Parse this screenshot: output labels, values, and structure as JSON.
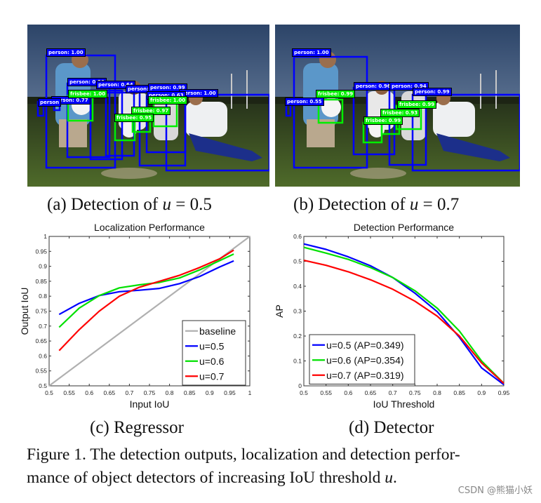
{
  "figure": {
    "panels": {
      "a": {
        "caption_prefix": "(a) Detection of ",
        "caption_var": "u",
        "caption_suffix": " = 0.5",
        "labels": [
          {
            "cls": "person",
            "text": "person: 1.00"
          },
          {
            "cls": "person",
            "text": "person: 0.56"
          },
          {
            "cls": "person",
            "text": "person: 0.64"
          },
          {
            "cls": "person",
            "text": "person: 0.70"
          },
          {
            "cls": "person",
            "text": "person: 0.82"
          },
          {
            "cls": "person",
            "text": "person: 0.99"
          },
          {
            "cls": "person",
            "text": "person: 0.63"
          },
          {
            "cls": "person",
            "text": "person: 1.00"
          },
          {
            "cls": "person",
            "text": "person: 0.77"
          },
          {
            "cls": "person",
            "text": "person"
          },
          {
            "cls": "frisbee",
            "text": "frisbee: 1.00"
          },
          {
            "cls": "frisbee",
            "text": "frisbee: 0.97"
          },
          {
            "cls": "frisbee",
            "text": "frisbee: 0.95"
          },
          {
            "cls": "frisbee",
            "text": "frisbee: 1.00"
          }
        ]
      },
      "b": {
        "caption_prefix": "(b) Detection of ",
        "caption_var": "u",
        "caption_suffix": " = 0.7",
        "labels": [
          {
            "cls": "person",
            "text": "person: 1.00"
          },
          {
            "cls": "person",
            "text": "person: 0.55"
          },
          {
            "cls": "person",
            "text": "person: 0.96"
          },
          {
            "cls": "person",
            "text": "person: 0.94"
          },
          {
            "cls": "person",
            "text": "person: 0.99"
          },
          {
            "cls": "frisbee",
            "text": "frisbee: 0.99"
          },
          {
            "cls": "frisbee",
            "text": "frisbee: 0.99"
          },
          {
            "cls": "frisbee",
            "text": "frisbee: 0.93"
          },
          {
            "cls": "frisbee",
            "text": "frisbee: 0.99"
          }
        ]
      },
      "c": {
        "caption": "(c) Regressor"
      },
      "d": {
        "caption": "(d) Detector"
      }
    },
    "caption_line1": "Figure 1. The detection outputs, localization and detection perfor-",
    "caption_line2_pre": "mance of object detectors of increasing IoU threshold ",
    "caption_line2_var": "u",
    "caption_line2_post": ".",
    "colors": {
      "person_box": "#0000ff",
      "frisbee_box": "#00ee00",
      "u05": "#0000ff",
      "u06": "#00e000",
      "u07": "#ff0000",
      "baseline": "#b0b0b0"
    }
  },
  "watermark": "CSDN @熊猫小妖",
  "chart_data": [
    {
      "type": "line",
      "title": "Localization Performance",
      "xlabel": "Input IoU",
      "ylabel": "Output IoU",
      "xlim": [
        0.5,
        1
      ],
      "ylim": [
        0.5,
        1
      ],
      "xticks": [
        "0.5",
        "0.55",
        "0.6",
        "0.65",
        "0.7",
        "0.75",
        "0.8",
        "0.85",
        "0.9",
        "0.95",
        "1"
      ],
      "yticks": [
        "0.5",
        "0.55",
        "0.6",
        "0.65",
        "0.7",
        "0.75",
        "0.8",
        "0.85",
        "0.9",
        "0.95",
        "1"
      ],
      "grid": false,
      "legend_position": "lower right",
      "x": [
        0.525,
        0.575,
        0.625,
        0.675,
        0.725,
        0.775,
        0.825,
        0.875,
        0.925,
        0.96
      ],
      "series": [
        {
          "name": "baseline",
          "x": [
            0.5,
            1.0
          ],
          "values": [
            0.5,
            1.0
          ],
          "color": "#b0b0b0"
        },
        {
          "name": "u=0.5",
          "values": [
            0.739,
            0.776,
            0.802,
            0.815,
            0.82,
            0.826,
            0.842,
            0.866,
            0.898,
            0.918
          ],
          "color": "#0000ff"
        },
        {
          "name": "u=0.6",
          "values": [
            0.696,
            0.76,
            0.802,
            0.828,
            0.838,
            0.846,
            0.861,
            0.888,
            0.919,
            0.941
          ],
          "color": "#00e000"
        },
        {
          "name": "u=0.7",
          "values": [
            0.618,
            0.688,
            0.75,
            0.8,
            0.83,
            0.85,
            0.87,
            0.896,
            0.925,
            0.954
          ],
          "color": "#ff0000"
        }
      ]
    },
    {
      "type": "line",
      "title": "Detection Performance",
      "xlabel": "IoU Threshold",
      "ylabel": "AP",
      "xlim": [
        0.5,
        0.95
      ],
      "ylim": [
        0,
        0.6
      ],
      "xticks": [
        "0.5",
        "0.55",
        "0.6",
        "0.65",
        "0.7",
        "0.75",
        "0.8",
        "0.85",
        "0.9",
        "0.95"
      ],
      "yticks": [
        "0",
        "0.1",
        "0.2",
        "0.3",
        "0.4",
        "0.5",
        "0.6"
      ],
      "grid": false,
      "legend_position": "lower left",
      "x": [
        0.5,
        0.55,
        0.6,
        0.65,
        0.7,
        0.75,
        0.8,
        0.85,
        0.9,
        0.95
      ],
      "series": [
        {
          "name": "u=0.5 (AP=0.349)",
          "values": [
            0.57,
            0.548,
            0.518,
            0.482,
            0.435,
            0.372,
            0.298,
            0.195,
            0.072,
            0.005
          ],
          "color": "#0000ff"
        },
        {
          "name": "u=0.6 (AP=0.354)",
          "values": [
            0.556,
            0.533,
            0.508,
            0.475,
            0.435,
            0.382,
            0.312,
            0.22,
            0.1,
            0.01
          ],
          "color": "#00e000"
        },
        {
          "name": "u=0.7 (AP=0.319)",
          "values": [
            0.504,
            0.484,
            0.458,
            0.426,
            0.388,
            0.34,
            0.28,
            0.2,
            0.092,
            0.01
          ],
          "color": "#ff0000"
        }
      ]
    }
  ]
}
